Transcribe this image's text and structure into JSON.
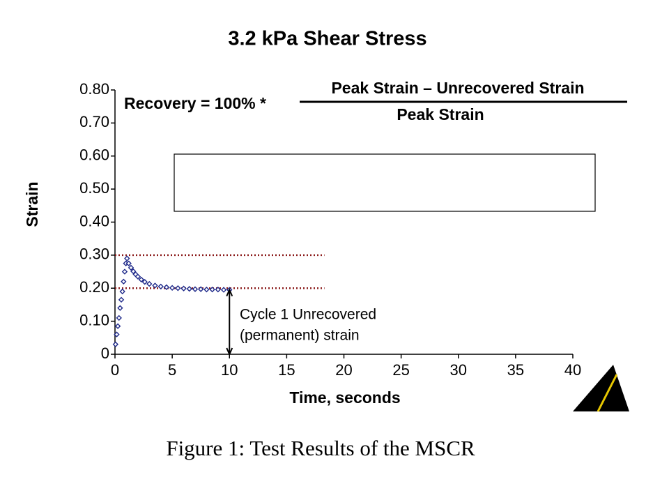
{
  "chart_data": {
    "type": "scatter",
    "title": "3.2 kPa Shear Stress",
    "xlabel": "Time, seconds",
    "ylabel": "Strain",
    "xlim": [
      0,
      40
    ],
    "xticks": [
      0,
      5,
      10,
      15,
      20,
      25,
      30,
      35,
      40
    ],
    "ylim": [
      0,
      0.8
    ],
    "yticks": [
      0,
      {
        "value": 0.1,
        "label": "0.10"
      },
      {
        "value": 0.2,
        "label": "0.20"
      },
      {
        "value": 0.3,
        "label": "0.30"
      },
      {
        "value": 0.4,
        "label": "0.40"
      },
      {
        "value": 0.5,
        "label": "0.50"
      },
      {
        "value": 0.6,
        "label": "0.60"
      },
      {
        "value": 0.7,
        "label": "0.70"
      },
      {
        "value": 0.8,
        "label": "0.80"
      }
    ],
    "series": [
      {
        "color": "#1f2a8a",
        "x": [
          0.05,
          0.15,
          0.25,
          0.35,
          0.45,
          0.55,
          0.65,
          0.75,
          0.85,
          0.95,
          1.05,
          1.2,
          1.4,
          1.6,
          1.8,
          2.0,
          2.3,
          2.6,
          3.0,
          3.5,
          4.0,
          4.5,
          5.0,
          5.5,
          6.0,
          6.5,
          7.0,
          7.5,
          8.0,
          8.5,
          9.0,
          9.5,
          10.0
        ],
        "values": [
          0.03,
          0.06,
          0.085,
          0.11,
          0.14,
          0.165,
          0.19,
          0.22,
          0.25,
          0.275,
          0.29,
          0.275,
          0.262,
          0.251,
          0.242,
          0.235,
          0.226,
          0.219,
          0.213,
          0.208,
          0.205,
          0.203,
          0.201,
          0.2,
          0.199,
          0.198,
          0.197,
          0.197,
          0.196,
          0.196,
          0.196,
          0.195,
          0.195
        ]
      }
    ],
    "reference_lines": {
      "values": [
        0.3,
        0.2
      ],
      "xmax": 18.3,
      "color": "#8b1a1a"
    },
    "annotation": [
      "Cycle 1 Unrecovered",
      "(permanent) strain"
    ],
    "formula": {
      "lhs": "Recovery = 100% *",
      "numerator": "Peak Strain – Unrecovered Strain",
      "denominator": "Peak Strain"
    },
    "caption": "Figure 1: Test Results of the MSCR"
  }
}
